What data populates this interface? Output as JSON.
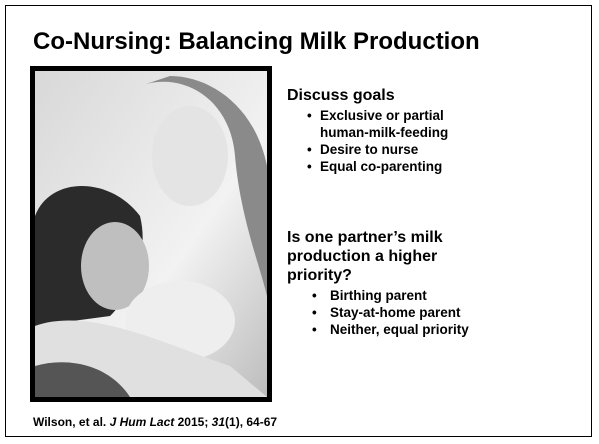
{
  "title": "Co-Nursing: Balancing Milk Production",
  "sections": [
    {
      "heading": "Discuss goals",
      "bullets": [
        "Exclusive or partial human-milk-feeding",
        "Desire to nurse",
        "Equal co-parenting"
      ]
    },
    {
      "heading": "Is one partner’s milk production a higher priority?",
      "bullets": [
        "Birthing parent",
        "Stay-at-home parent",
        "Neither, equal priority"
      ]
    }
  ],
  "citation": {
    "author": "Wilson, et al.",
    "journal": "J Hum Lact",
    "year": "2015;",
    "volume": "31",
    "rest": "(1), 64-67"
  }
}
